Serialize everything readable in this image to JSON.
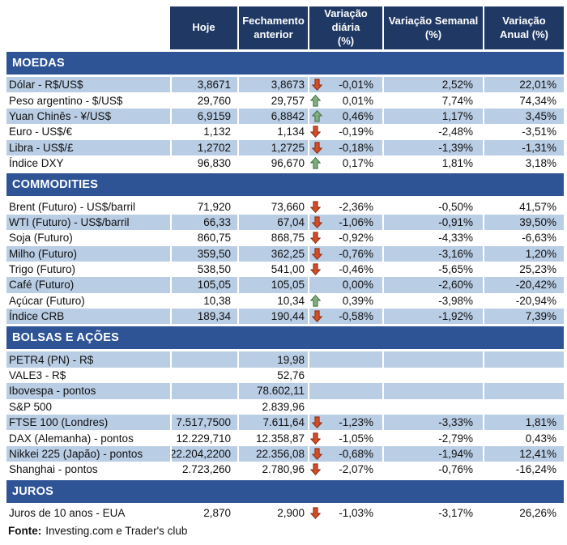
{
  "chart_data": {
    "type": "table",
    "columns": [
      "Hoje",
      "Fechamento\nanterior",
      "Variação diária\n(%)",
      "Variação Semanal\n(%)",
      "Variação\nAnual (%)"
    ],
    "sections": [
      {
        "title": "MOEDAS",
        "rows": [
          {
            "label": "Dólar - R$/US$",
            "hoje": "3,8671",
            "fechamento": "3,8673",
            "arrow": "down",
            "diaria": "-0,01%",
            "semanal": "2,52%",
            "anual": "22,01%"
          },
          {
            "label": "Peso argentino - $/US$",
            "hoje": "29,760",
            "fechamento": "29,757",
            "arrow": "up",
            "diaria": "0,01%",
            "semanal": "7,74%",
            "anual": "74,34%"
          },
          {
            "label": "Yuan Chinês - ¥/US$",
            "hoje": "6,9159",
            "fechamento": "6,8842",
            "arrow": "up",
            "diaria": "0,46%",
            "semanal": "1,17%",
            "anual": "3,45%"
          },
          {
            "label": "Euro - US$/€",
            "hoje": "1,132",
            "fechamento": "1,134",
            "arrow": "down",
            "diaria": "-0,19%",
            "semanal": "-2,48%",
            "anual": "-3,51%"
          },
          {
            "label": "Libra - US$/£",
            "hoje": "1,2702",
            "fechamento": "1,2725",
            "arrow": "down",
            "diaria": "-0,18%",
            "semanal": "-1,39%",
            "anual": "-1,31%"
          },
          {
            "label": "Índice DXY",
            "hoje": "96,830",
            "fechamento": "96,670",
            "arrow": "up",
            "diaria": "0,17%",
            "semanal": "1,81%",
            "anual": "3,18%"
          }
        ]
      },
      {
        "title": "COMMODITIES",
        "rows": [
          {
            "label": "Brent (Futuro) - US$/barril",
            "hoje": "71,920",
            "fechamento": "73,660",
            "arrow": "down",
            "diaria": "-2,36%",
            "semanal": "-0,50%",
            "anual": "41,57%"
          },
          {
            "label": "WTI (Futuro) - US$/barril",
            "hoje": "66,33",
            "fechamento": "67,04",
            "arrow": "down",
            "diaria": "-1,06%",
            "semanal": "-0,91%",
            "anual": "39,50%"
          },
          {
            "label": "Soja (Futuro)",
            "hoje": "860,75",
            "fechamento": "868,75",
            "arrow": "down",
            "diaria": "-0,92%",
            "semanal": "-4,33%",
            "anual": "-6,63%"
          },
          {
            "label": "Milho (Futuro)",
            "hoje": "359,50",
            "fechamento": "362,25",
            "arrow": "down",
            "diaria": "-0,76%",
            "semanal": "-3,16%",
            "anual": "1,20%"
          },
          {
            "label": "Trigo (Futuro)",
            "hoje": "538,50",
            "fechamento": "541,00",
            "arrow": "down",
            "diaria": "-0,46%",
            "semanal": "-5,65%",
            "anual": "25,23%"
          },
          {
            "label": "Café (Futuro)",
            "hoje": "105,05",
            "fechamento": "105,05",
            "arrow": null,
            "diaria": "0,00%",
            "semanal": "-2,60%",
            "anual": "-20,42%"
          },
          {
            "label": "Açúcar (Futuro)",
            "hoje": "10,38",
            "fechamento": "10,34",
            "arrow": "up",
            "diaria": "0,39%",
            "semanal": "-3,98%",
            "anual": "-20,94%"
          },
          {
            "label": "Índice CRB",
            "hoje": "189,34",
            "fechamento": "190,44",
            "arrow": "down",
            "diaria": "-0,58%",
            "semanal": "-1,92%",
            "anual": "7,39%"
          }
        ]
      },
      {
        "title": "BOLSAS E AÇÕES",
        "rows": [
          {
            "label": "PETR4 (PN) - R$",
            "hoje": "",
            "fechamento": "19,98",
            "arrow": null,
            "diaria": "",
            "semanal": "",
            "anual": ""
          },
          {
            "label": "VALE3 - R$",
            "hoje": "",
            "fechamento": "52,76",
            "arrow": null,
            "diaria": "",
            "semanal": "",
            "anual": ""
          },
          {
            "label": "Ibovespa - pontos",
            "hoje": "",
            "fechamento": "78.602,11",
            "arrow": null,
            "diaria": "",
            "semanal": "",
            "anual": ""
          },
          {
            "label": "S&P 500",
            "hoje": "",
            "fechamento": "2.839,96",
            "arrow": null,
            "diaria": "",
            "semanal": "",
            "anual": ""
          },
          {
            "label": "FTSE 100 (Londres)",
            "hoje": "7.517,7500",
            "fechamento": "7.611,64",
            "arrow": "down",
            "diaria": "-1,23%",
            "semanal": "-3,33%",
            "anual": "1,81%"
          },
          {
            "label": "DAX (Alemanha) - pontos",
            "hoje": "12.229,710",
            "fechamento": "12.358,87",
            "arrow": "down",
            "diaria": "-1,05%",
            "semanal": "-2,79%",
            "anual": "0,43%"
          },
          {
            "label": "Nikkei 225 (Japão) - pontos",
            "hoje": "22.204,2200",
            "fechamento": "22.356,08",
            "arrow": "down",
            "diaria": "-0,68%",
            "semanal": "-1,94%",
            "anual": "12,41%"
          },
          {
            "label": "Shanghai - pontos",
            "hoje": "2.723,260",
            "fechamento": "2.780,96",
            "arrow": "down",
            "diaria": "-2,07%",
            "semanal": "-0,76%",
            "anual": "-16,24%"
          }
        ]
      },
      {
        "title": "JUROS",
        "rows": [
          {
            "label": "Juros de 10 anos - EUA",
            "hoje": "2,870",
            "fechamento": "2,900",
            "arrow": "down",
            "diaria": "-1,03%",
            "semanal": "-3,17%",
            "anual": "26,26%"
          }
        ]
      }
    ]
  },
  "footer": {
    "label": "Fonte:",
    "text": "Investing.com e Trader's club"
  },
  "icons": {
    "up": "up-arrow-icon",
    "down": "down-arrow-icon"
  },
  "colors": {
    "header_bg": "#1F3864",
    "section_bg": "#2E5496",
    "band_bg": "#B9CDE5",
    "up_green": "#7FAF7F",
    "up_green_border": "#3F6F41",
    "down_red": "#D04E2A",
    "down_red_border": "#8C2D10"
  }
}
